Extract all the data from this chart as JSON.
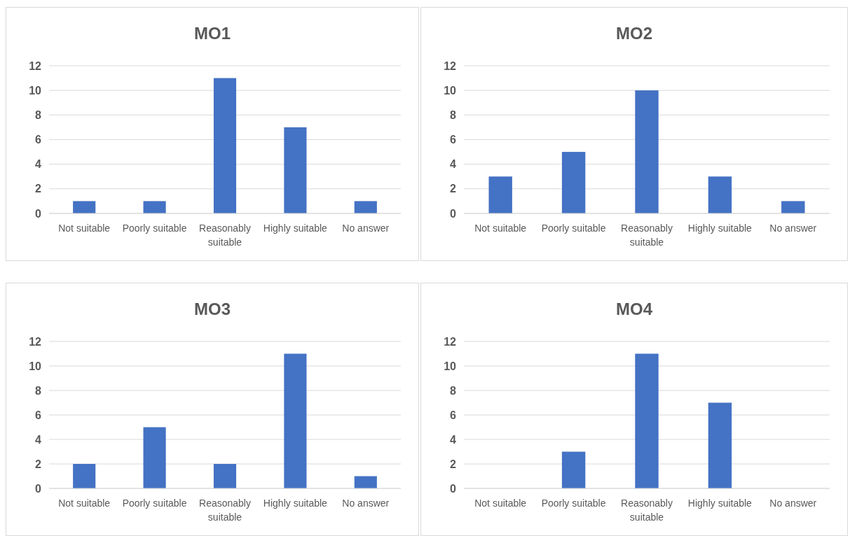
{
  "chart_data": [
    {
      "type": "bar",
      "title": "MO1",
      "categories": [
        "Not suitable",
        "Poorly suitable",
        "Reasonably suitable",
        "Highly suitable",
        "No answer"
      ],
      "values": [
        1,
        1,
        11,
        7,
        1
      ],
      "color": "#4472c4",
      "ylim": [
        0,
        12
      ],
      "yticks": [
        0,
        2,
        4,
        6,
        8,
        10,
        12
      ],
      "grid": "y"
    },
    {
      "type": "bar",
      "title": "MO2",
      "categories": [
        "Not suitable",
        "Poorly suitable",
        "Reasonably suitable",
        "Highly suitable",
        "No answer"
      ],
      "values": [
        3,
        5,
        10,
        3,
        1
      ],
      "color": "#4472c4",
      "ylim": [
        0,
        12
      ],
      "yticks": [
        0,
        2,
        4,
        6,
        8,
        10,
        12
      ],
      "grid": "y"
    },
    {
      "type": "bar",
      "title": "MO3",
      "categories": [
        "Not suitable",
        "Poorly suitable",
        "Reasonably suitable",
        "Highly suitable",
        "No answer"
      ],
      "values": [
        2,
        5,
        2,
        11,
        1
      ],
      "color": "#4472c4",
      "ylim": [
        0,
        12
      ],
      "yticks": [
        0,
        2,
        4,
        6,
        8,
        10,
        12
      ],
      "grid": "y"
    },
    {
      "type": "bar",
      "title": "MO4",
      "categories": [
        "Not suitable",
        "Poorly suitable",
        "Reasonably suitable",
        "Highly suitable",
        "No answer"
      ],
      "values": [
        0,
        3,
        11,
        7,
        0
      ],
      "color": "#4472c4",
      "ylim": [
        0,
        12
      ],
      "yticks": [
        0,
        2,
        4,
        6,
        8,
        10,
        12
      ],
      "grid": "y"
    }
  ]
}
